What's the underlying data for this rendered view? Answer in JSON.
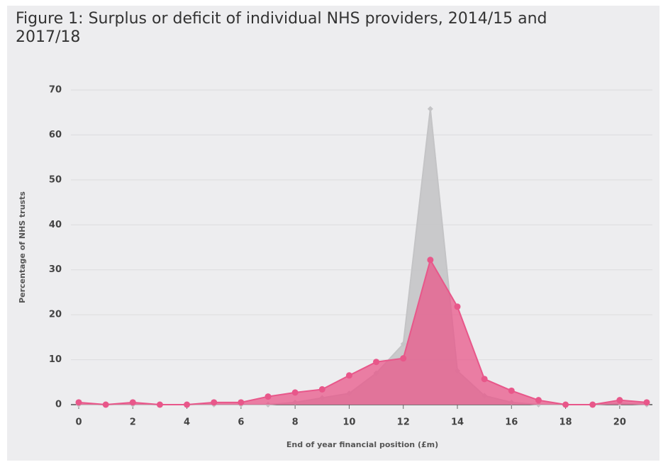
{
  "chart_data": {
    "type": "area",
    "title": "Figure 1: Surplus or deficit of individual NHS providers, 2014/15 and 2017/18",
    "x_label": "End of year financial position (£m)",
    "y_label": "Percentage of NHS trusts",
    "x": [
      0,
      1,
      2,
      3,
      4,
      5,
      6,
      7,
      8,
      9,
      10,
      11,
      12,
      13,
      14,
      15,
      16,
      17,
      18,
      19,
      20,
      21
    ],
    "series": [
      {
        "color": "#c4c4c6",
        "values": [
          0,
          0,
          0,
          0,
          0,
          0,
          0,
          0,
          0.5,
          1.5,
          2.5,
          7,
          13.5,
          65.8,
          7.5,
          2,
          0.5,
          0,
          0,
          0,
          0.3,
          0
        ]
      },
      {
        "color": "#e8578a",
        "values": [
          0.5,
          0,
          0.5,
          0,
          0,
          0.5,
          0.5,
          1.8,
          2.7,
          3.4,
          6.5,
          9.5,
          10.3,
          32.2,
          21.8,
          5.7,
          3.1,
          1.0,
          0,
          0,
          1.0,
          0.5
        ]
      }
    ],
    "xlim": [
      0,
      21
    ],
    "ylim": [
      0,
      70
    ],
    "xticks": [
      0,
      2,
      4,
      6,
      8,
      10,
      12,
      14,
      16,
      18,
      20
    ],
    "yticks": [
      0,
      10,
      20,
      30,
      40,
      50,
      60,
      70
    ],
    "grid": true
  }
}
